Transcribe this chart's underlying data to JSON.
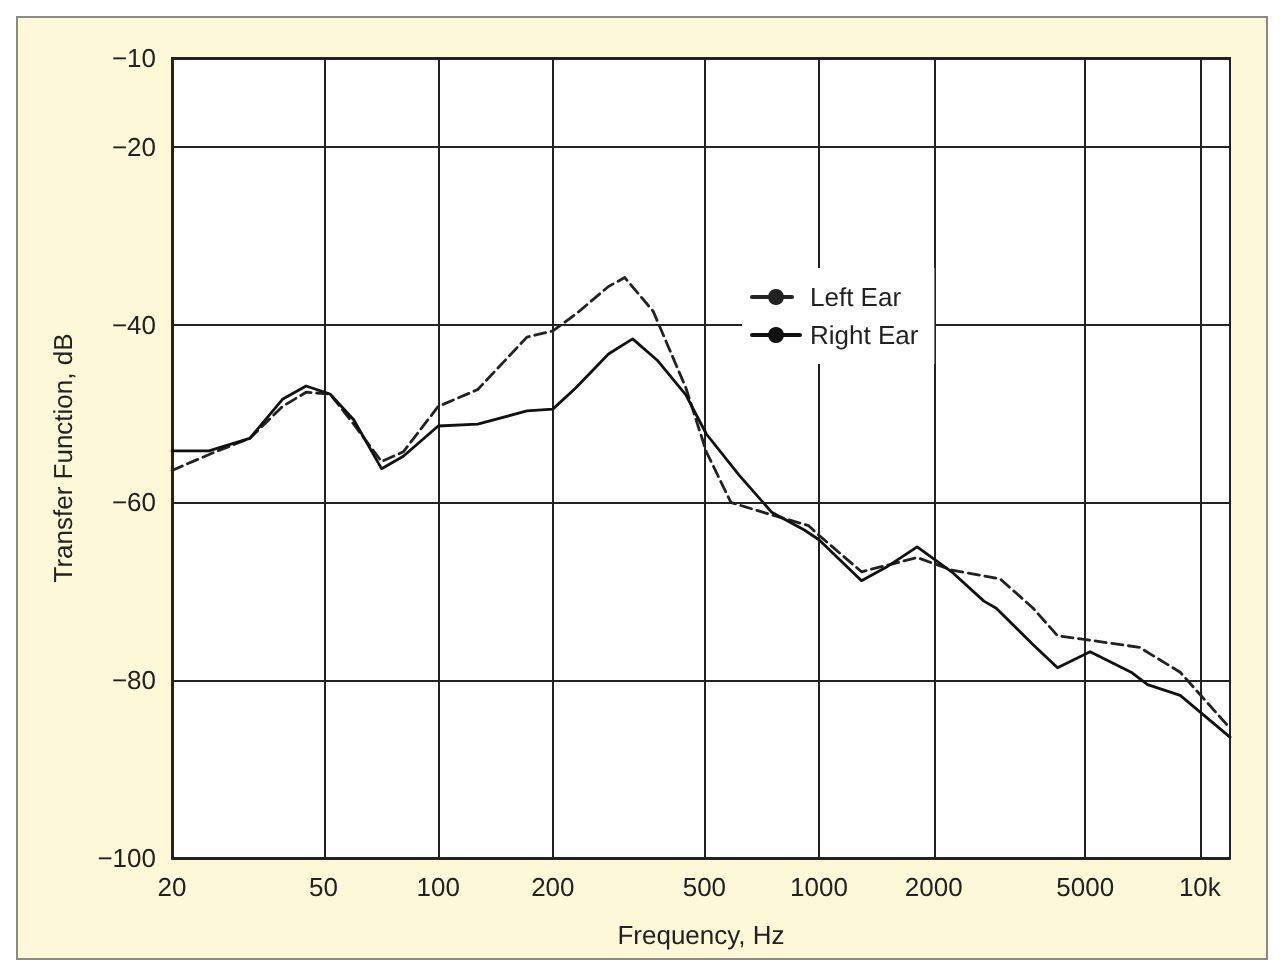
{
  "chart_data": {
    "type": "line",
    "xlabel": "Frequency, Hz",
    "ylabel": "Transfer Function, dB",
    "log": "x",
    "grid": true,
    "legend": "top right",
    "marker": "none",
    "xlim": [
      20,
      12000
    ],
    "xticks": [
      20,
      50,
      100,
      200,
      500,
      1000,
      2000,
      5000,
      {
        "value": 10000,
        "label": "10k"
      }
    ],
    "ylim": [
      -100,
      -10
    ],
    "yticks": [
      {
        "value": -100,
        "label": "−100"
      },
      {
        "value": -80,
        "label": "−80"
      },
      {
        "value": -60,
        "label": "−60"
      },
      {
        "value": -40,
        "label": "−40"
      },
      {
        "value": -20,
        "label": "−20"
      },
      {
        "value": -10,
        "label": "−10"
      }
    ],
    "series": [
      {
        "name": "Left Ear",
        "color": "#222222",
        "line_style": "dashed",
        "x": [
          20,
          26,
          32,
          39,
          45,
          52,
          60,
          71,
          81,
          100,
          127,
          171,
          200,
          230,
          280,
          309,
          367,
          447,
          506,
          587,
          751,
          938,
          1000,
          1293,
          1810,
          2230,
          2990,
          3650,
          4230,
          5150,
          6940,
          8880,
          12000
        ],
        "values": [
          -56.4,
          -54.3,
          -52.8,
          -49.2,
          -47.6,
          -47.8,
          -51.2,
          -55.4,
          -54.3,
          -49.2,
          -47.3,
          -41.4,
          -40.7,
          -38.8,
          -35.7,
          -34.7,
          -38.5,
          -47.1,
          -54.3,
          -60.0,
          -61.4,
          -62.6,
          -63.7,
          -67.8,
          -66.2,
          -67.6,
          -68.6,
          -71.9,
          -75.0,
          -75.5,
          -76.3,
          -79.1,
          -85.4
        ]
      },
      {
        "name": "Right Ear",
        "color": "#111111",
        "line_style": "solid",
        "x": [
          20,
          25,
          32,
          39,
          45,
          52,
          60,
          71,
          81,
          100,
          127,
          171,
          200,
          230,
          280,
          324,
          376,
          447,
          506,
          616,
          751,
          915,
          1000,
          1293,
          1500,
          1810,
          2230,
          2710,
          2920,
          3650,
          4230,
          5150,
          6600,
          7290,
          8880,
          12000
        ],
        "values": [
          -54.2,
          -54.2,
          -52.8,
          -48.4,
          -46.9,
          -47.8,
          -50.7,
          -56.2,
          -54.8,
          -51.4,
          -51.2,
          -49.7,
          -49.5,
          -47.1,
          -43.3,
          -41.6,
          -44.0,
          -47.9,
          -52.3,
          -56.9,
          -61.1,
          -63.1,
          -64.2,
          -68.8,
          -67.3,
          -65.0,
          -67.8,
          -71.1,
          -71.9,
          -76.0,
          -78.6,
          -76.8,
          -79.1,
          -80.5,
          -81.7,
          -86.4
        ]
      }
    ]
  }
}
